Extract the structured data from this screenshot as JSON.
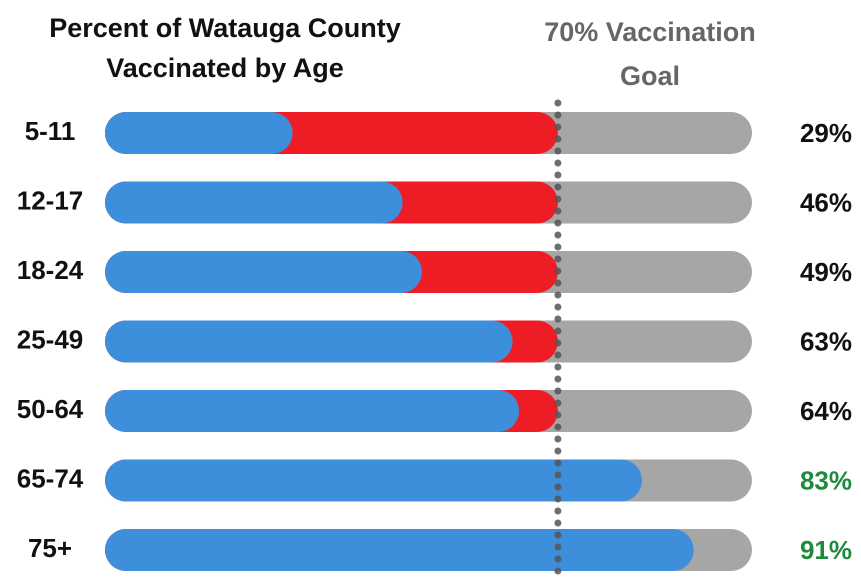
{
  "chart_data": {
    "type": "goal_bar",
    "title": "Percent of Watauga County Vaccinated by Age",
    "goal_label": "70% Vaccination Goal",
    "goal": 70,
    "categories": [
      "5-11",
      "12-17",
      "18-24",
      "25-49",
      "50-64",
      "65-74",
      "75+"
    ],
    "values": [
      29,
      46,
      49,
      63,
      64,
      83,
      91
    ],
    "value_labels": [
      "29%",
      "46%",
      "49%",
      "63%",
      "64%",
      "83%",
      "91%"
    ],
    "xlim": [
      0,
      100
    ],
    "color": "#3d8fdb",
    "gap_color": "#ee1c25",
    "track_color": "#a6a6a6",
    "goal_line_color": "#555555",
    "label_color": "#111111",
    "above_goal_label_color": "#1e8a3c"
  }
}
